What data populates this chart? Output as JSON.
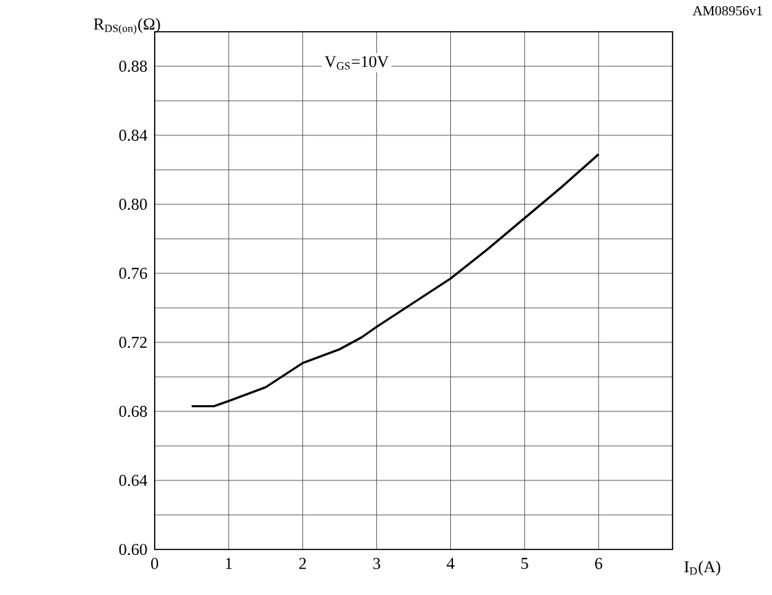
{
  "chart_data": {
    "type": "line",
    "ylabel": "R$_{DS(on)}$(Ω)",
    "xlabel": "I$_{D}$(A)",
    "annotations": [
      "V$_{GS}$=10V",
      "AM08956v1"
    ],
    "x": [
      0.5,
      0.8,
      1,
      1.5,
      2,
      2.5,
      2.8,
      3,
      3.5,
      4,
      4.5,
      5,
      5.5,
      6
    ],
    "series": [
      {
        "color": "#000000",
        "values": [
          0.683,
          0.683,
          0.686,
          0.694,
          0.708,
          0.716,
          0.723,
          0.729,
          0.743,
          0.757,
          0.774,
          0.792,
          0.81,
          0.829
        ]
      }
    ],
    "xlim": [
      0,
      7
    ],
    "ylim": [
      0.6,
      0.9
    ],
    "xticks": [
      0,
      1,
      2,
      3,
      4,
      5,
      6,
      {
        "value": 7,
        "label": null
      }
    ],
    "yticks": [
      {
        "value": 0.6,
        "label": "0.60"
      },
      {
        "value": 0.62,
        "label": null
      },
      {
        "value": 0.64,
        "label": "0.64"
      },
      {
        "value": 0.66,
        "label": null
      },
      {
        "value": 0.68,
        "label": "0.68"
      },
      {
        "value": 0.7,
        "label": null
      },
      {
        "value": 0.72,
        "label": "0.72"
      },
      {
        "value": 0.74,
        "label": null
      },
      {
        "value": 0.76,
        "label": "0.76"
      },
      {
        "value": 0.78,
        "label": null
      },
      {
        "value": 0.8,
        "label": "0.80"
      },
      {
        "value": 0.82,
        "label": null
      },
      {
        "value": 0.84,
        "label": "0.84"
      },
      {
        "value": 0.86,
        "label": null
      },
      {
        "value": 0.88,
        "label": "0.88"
      },
      {
        "value": 0.9,
        "label": null
      }
    ],
    "grid": true,
    "marker": "none",
    "line_style": "solid"
  }
}
